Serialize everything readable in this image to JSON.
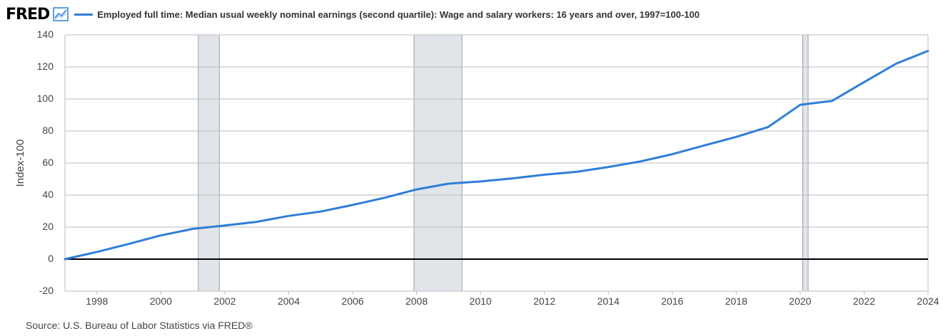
{
  "header": {
    "logo_text": "FRED",
    "logo_icon": "trend-chart-icon"
  },
  "source": "Source: U.S. Bureau of Labor Statistics via FRED®",
  "colors": {
    "series": "#2f7ed8",
    "recession": "#e1e5ea",
    "grid": "#bbbbbb",
    "zero_line": "#000000",
    "text": "#444444"
  },
  "chart_data": {
    "type": "line",
    "title": "",
    "xlabel": "",
    "ylabel": "Index-100",
    "xlim": [
      1997,
      2024
    ],
    "ylim": [
      -20,
      140
    ],
    "y_ticks": [
      -20,
      0,
      20,
      40,
      60,
      80,
      100,
      120,
      140
    ],
    "x_ticks": [
      1998,
      2000,
      2002,
      2004,
      2006,
      2008,
      2010,
      2012,
      2014,
      2016,
      2018,
      2020,
      2022,
      2024
    ],
    "grid": true,
    "legend_position": "top-left",
    "recessions": [
      [
        2001.17,
        2001.83
      ],
      [
        2007.92,
        2009.42
      ],
      [
        2020.08,
        2020.25
      ]
    ],
    "series": [
      {
        "name": "Employed full time: Median usual weekly nominal earnings (second quartile): Wage and salary workers: 16 years and over, 1997=100-100",
        "x": [
          1997,
          1998,
          1999,
          2000,
          2001,
          2002,
          2003,
          2004,
          2005,
          2006,
          2007,
          2008,
          2009,
          2010,
          2011,
          2012,
          2013,
          2014,
          2015,
          2016,
          2017,
          2018,
          2019,
          2020,
          2021,
          2022,
          2023,
          2024
        ],
        "y": [
          0,
          4.5,
          9.5,
          14.8,
          18.9,
          21.0,
          23.3,
          27.0,
          29.7,
          33.8,
          38.3,
          43.5,
          47.1,
          48.5,
          50.4,
          52.7,
          54.5,
          57.5,
          61.0,
          65.5,
          71.0,
          76.3,
          82.5,
          96.3,
          98.8,
          110.5,
          122.0,
          130.0
        ]
      }
    ]
  }
}
